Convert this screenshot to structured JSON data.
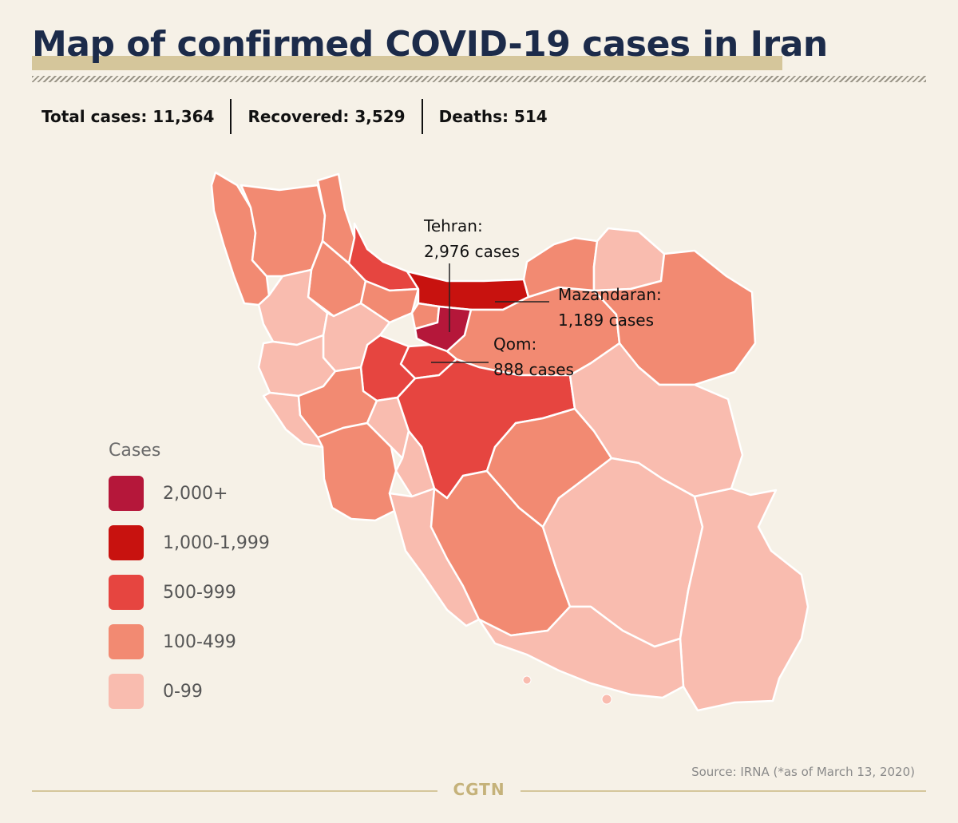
{
  "title": "Map of confirmed COVID-19 cases in Iran",
  "stats": {
    "total": "Total cases: 11,364",
    "recovered": "Recovered: 3,529",
    "deaths": "Deaths: 514"
  },
  "colors": {
    "c2000": "#b5173a",
    "c1000": "#c8120f",
    "c500": "#e64540",
    "c100": "#f28a72",
    "c0": "#f9bcaf",
    "border": "#ffffff",
    "accent": "#d5c69b",
    "title": "#1c2b4a"
  },
  "legend": {
    "title": "Cases",
    "items": [
      {
        "label": "2,000+",
        "color": "#b5173a"
      },
      {
        "label": "1,000-1,999",
        "color": "#c8120f"
      },
      {
        "label": "500-999",
        "color": "#e64540"
      },
      {
        "label": "100-499",
        "color": "#f28a72"
      },
      {
        "label": "0-99",
        "color": "#f9bcaf"
      }
    ]
  },
  "callouts": {
    "tehran": {
      "name": "Tehran:",
      "cases": "2,976 cases"
    },
    "mazandaran": {
      "name": "Mazandaran:",
      "cases": "1,189 cases"
    },
    "qom": {
      "name": "Qom:",
      "cases": "888 cases"
    }
  },
  "source": "Source: IRNA (*as of March 13, 2020)",
  "brand": "CGTN"
}
